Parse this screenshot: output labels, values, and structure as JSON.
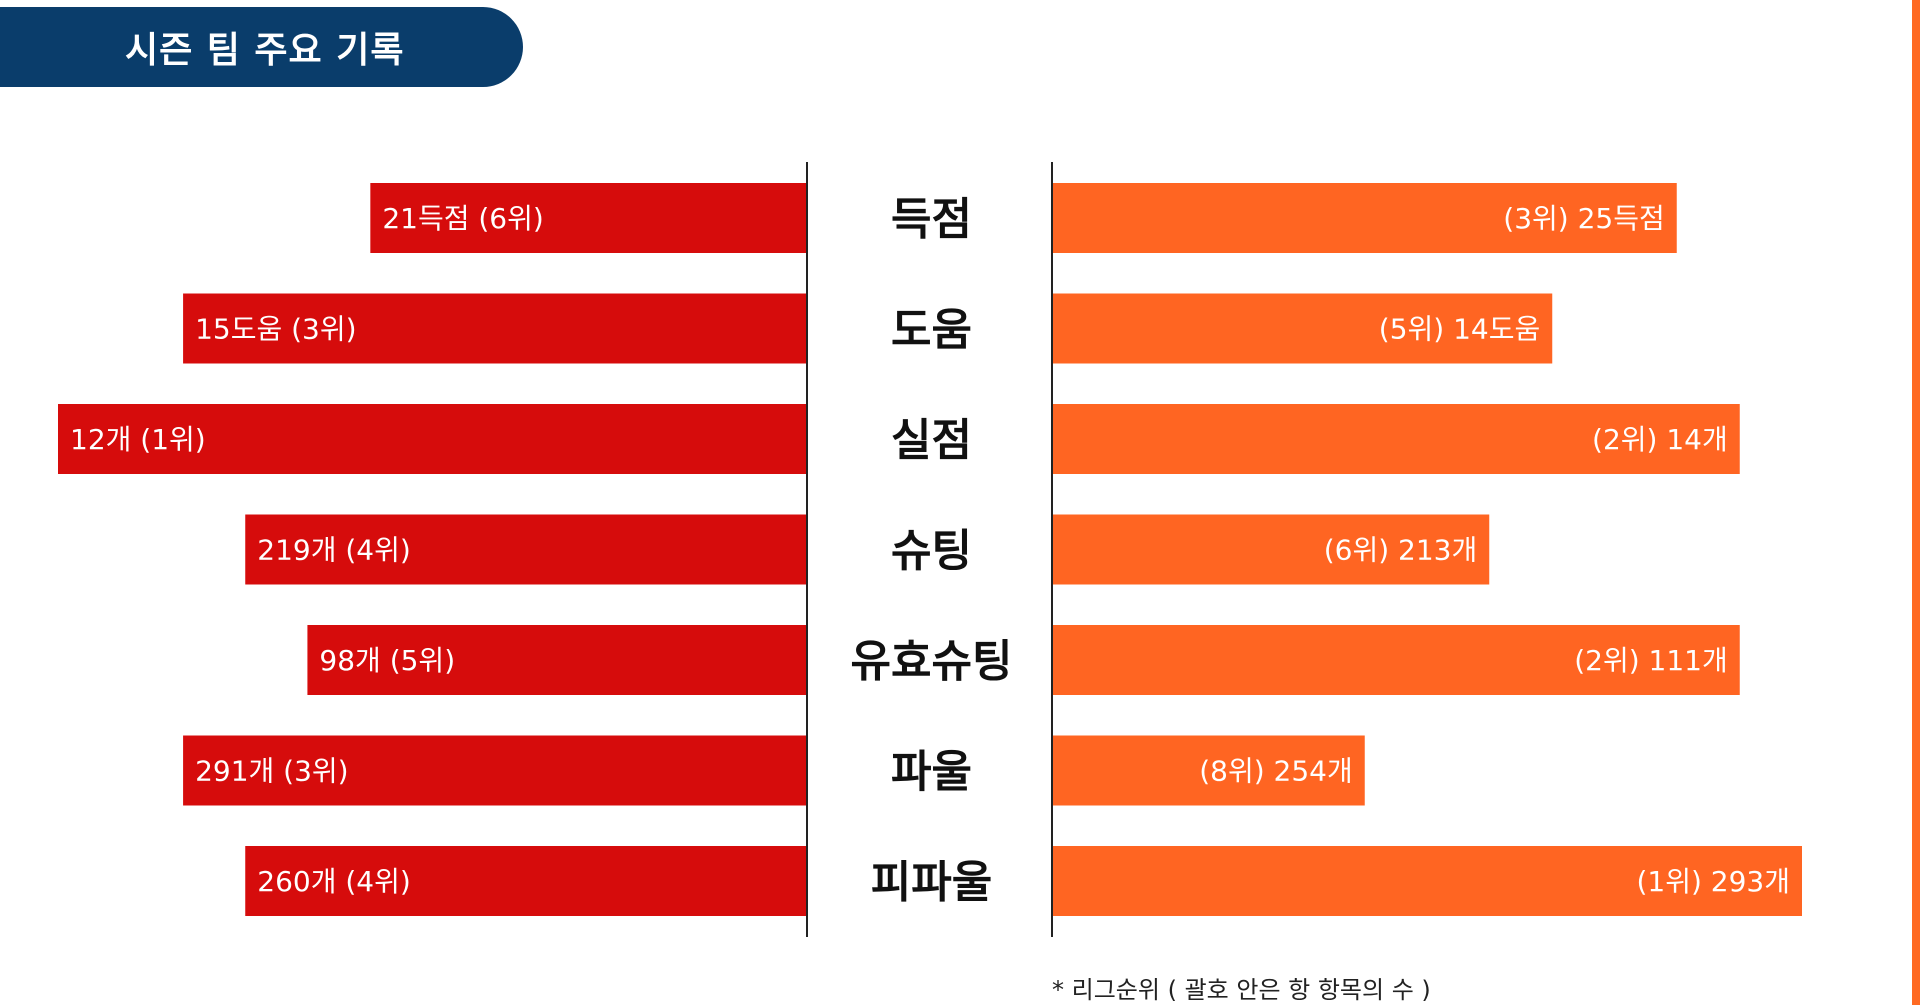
{
  "header": {
    "title": "시즌 팀 주요 기록"
  },
  "footnote": "* 리그순위 ( 괄호 안은 항 항목의 수 )",
  "colors": {
    "header_bg": "#0a3d6b",
    "left_bar": "#d60c0c",
    "right_bar": "#ff6522",
    "axis": "#222222"
  },
  "chart_data": {
    "type": "bar",
    "orientation": "horizontal-diverging",
    "categories": [
      "득점",
      "도움",
      "실점",
      "슈팅",
      "유효슈팅",
      "파울",
      "피파울"
    ],
    "series": [
      {
        "side": "left",
        "values": [
          21,
          15,
          12,
          219,
          98,
          291,
          260
        ],
        "ranks": [
          6,
          3,
          1,
          4,
          5,
          3,
          4
        ],
        "bar_fraction": [
          0.583,
          0.833,
          1.0,
          0.75,
          0.667,
          0.833,
          0.75
        ],
        "labels": [
          "21득점 (6위)",
          "15도움 (3위)",
          "12개 (1위)",
          "219개 (4위)",
          "98개 (5위)",
          "291개 (3위)",
          "260개 (4위)"
        ]
      },
      {
        "side": "right",
        "values": [
          25,
          14,
          14,
          213,
          111,
          254,
          293
        ],
        "ranks": [
          3,
          5,
          2,
          6,
          2,
          8,
          1
        ],
        "bar_fraction": [
          0.833,
          0.667,
          0.917,
          0.583,
          0.917,
          0.417,
          1.0
        ],
        "labels": [
          "(3위) 25득점",
          "(5위) 14도움",
          "(2위) 14개",
          "(6위) 213개",
          "(2위) 111개",
          "(8위) 254개",
          "(1위) 293개"
        ]
      }
    ]
  }
}
